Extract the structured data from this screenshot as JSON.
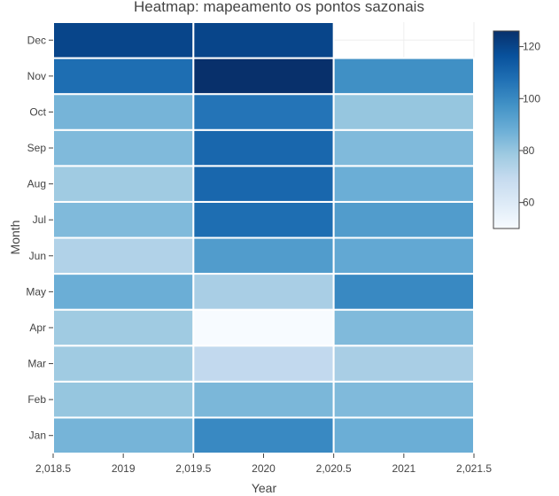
{
  "chart_data": {
    "type": "heatmap",
    "title": "Heatmap: mapeamento os pontos sazonais",
    "xlabel": "Year",
    "ylabel": "Month",
    "x": [
      2019,
      2020,
      2021
    ],
    "x_range": [
      2018.5,
      2021.5
    ],
    "x_tick_labels": [
      "2,018.5",
      "2019",
      "2,019.5",
      "2020",
      "2,020.5",
      "2021",
      "2,021.5"
    ],
    "x_tick_values": [
      2018.5,
      2019,
      2019.5,
      2020,
      2020.5,
      2021,
      2021.5
    ],
    "y": [
      "Jan",
      "Feb",
      "Mar",
      "Apr",
      "May",
      "Jun",
      "Jul",
      "Aug",
      "Sep",
      "Oct",
      "Nov",
      "Dec"
    ],
    "z": [
      [
        86,
        100,
        88
      ],
      [
        80,
        85,
        84
      ],
      [
        78,
        70,
        76
      ],
      [
        78,
        50,
        84
      ],
      [
        88,
        76,
        100
      ],
      [
        74,
        94,
        90
      ],
      [
        84,
        108,
        94
      ],
      [
        78,
        110,
        88
      ],
      [
        84,
        110,
        84
      ],
      [
        86,
        106,
        80
      ],
      [
        108,
        126,
        98
      ],
      [
        120,
        120,
        null
      ]
    ],
    "colorscale": "Blues",
    "colorbar": {
      "min": 50,
      "max": 126,
      "ticks": [
        60,
        80,
        100,
        120
      ],
      "tick_labels": [
        "60",
        "80",
        "100",
        "120"
      ]
    },
    "grid": true,
    "legend": "colorbar-right"
  }
}
